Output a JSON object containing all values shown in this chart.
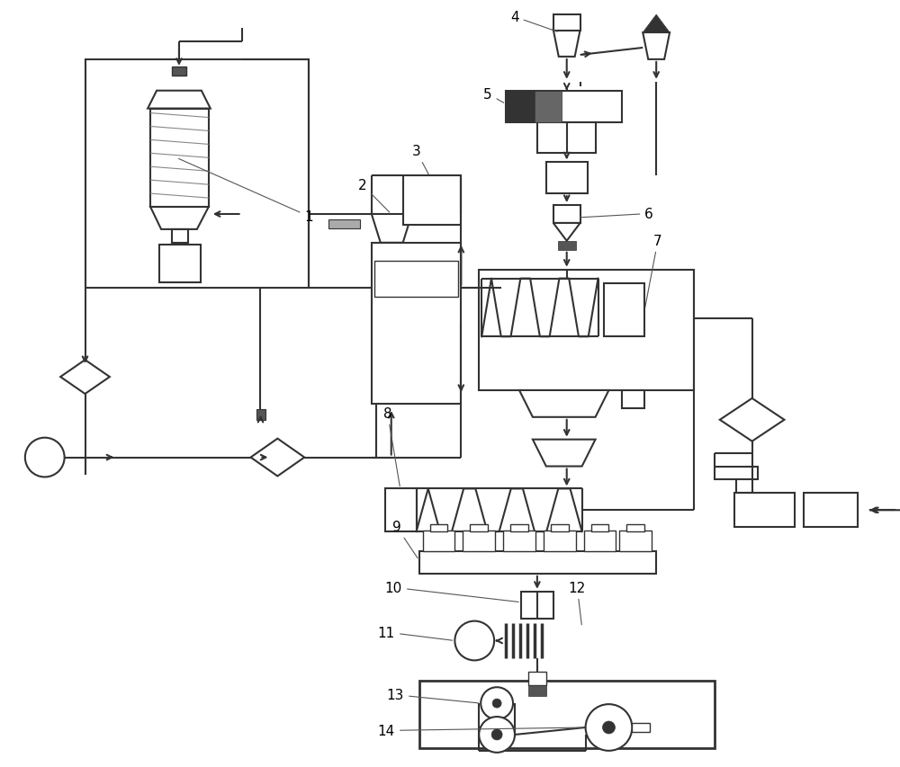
{
  "bg_color": "#ffffff",
  "lc": "#333333",
  "lw": 1.5,
  "fig_w": 10.0,
  "fig_h": 8.54,
  "dpi": 100
}
